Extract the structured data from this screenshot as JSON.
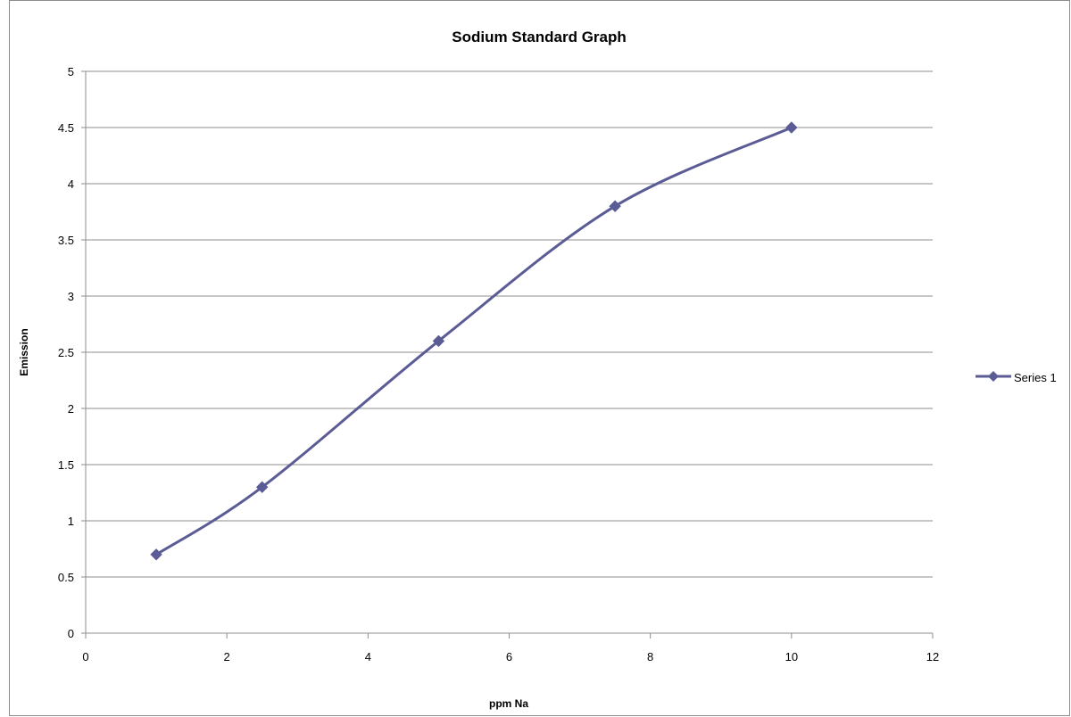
{
  "chart_data": {
    "type": "line",
    "title": "Sodium Standard Graph",
    "xlabel": "ppm Na",
    "ylabel": "Emission",
    "xlim": [
      0,
      12
    ],
    "ylim": [
      0,
      5
    ],
    "xticks": [
      "0",
      "2",
      "4",
      "6",
      "8",
      "10",
      "12"
    ],
    "yticks": [
      "0",
      "0.5",
      "1",
      "1.5",
      "2",
      "2.5",
      "3",
      "3.5",
      "4",
      "4.5",
      "5"
    ],
    "grid": "horizontal",
    "smooth": true,
    "legend_position": "right",
    "series": [
      {
        "name": "Series 1",
        "color": "#5b5b95",
        "marker": "diamond",
        "x": [
          1,
          2.5,
          5,
          7.5,
          10
        ],
        "y": [
          0.7,
          1.3,
          2.6,
          3.8,
          4.5
        ]
      }
    ]
  }
}
